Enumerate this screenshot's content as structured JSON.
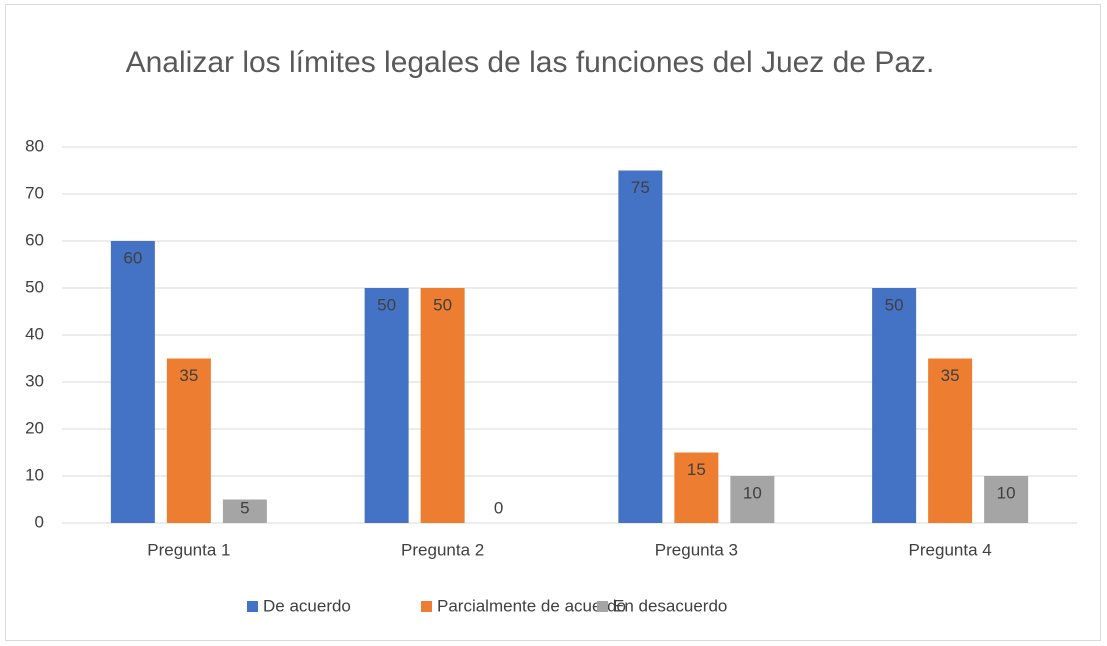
{
  "chart_data": {
    "type": "bar",
    "title": "Analizar los límites legales de las funciones del Juez de Paz.",
    "categories": [
      "Pregunta 1",
      "Pregunta 2",
      "Pregunta 3",
      "Pregunta 4"
    ],
    "series": [
      {
        "name": "De acuerdo",
        "color": "#4472c4",
        "values": [
          60,
          50,
          75,
          50
        ]
      },
      {
        "name": "Parcialmente de acuerdo",
        "color": "#ed7d31",
        "values": [
          35,
          50,
          15,
          35
        ]
      },
      {
        "name": "En desacuerdo",
        "color": "#a5a5a5",
        "values": [
          5,
          0,
          10,
          10
        ]
      }
    ],
    "ylim": [
      0,
      80
    ],
    "yticks": [
      0,
      10,
      20,
      30,
      40,
      50,
      60,
      70,
      80
    ],
    "grid": true,
    "legend": "bottom"
  }
}
